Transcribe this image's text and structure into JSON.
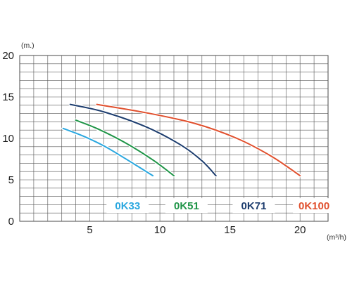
{
  "chart_data": {
    "type": "line",
    "ylabel": "(m.)",
    "xlabel": "(m³/h)",
    "xlim": [
      0,
      22
    ],
    "ylim": [
      0,
      20
    ],
    "x_ticks": [
      5,
      10,
      15,
      20
    ],
    "y_ticks": [
      0,
      5,
      10,
      15,
      20
    ],
    "x_minor_step": 1,
    "y_minor_step": 1,
    "grid": true,
    "legend": "inline labels along the bottom of the plot",
    "series": [
      {
        "name": "0K33",
        "color": "#2aa7df",
        "points": [
          [
            3.1,
            11.2
          ],
          [
            4.5,
            10.3
          ],
          [
            6,
            9.1
          ],
          [
            7.5,
            7.6
          ],
          [
            9.5,
            5.5
          ]
        ]
      },
      {
        "name": "0K51",
        "color": "#1f9447",
        "points": [
          [
            4,
            12.2
          ],
          [
            5.5,
            11.2
          ],
          [
            7.5,
            9.5
          ],
          [
            9.5,
            7.4
          ],
          [
            11,
            5.5
          ]
        ]
      },
      {
        "name": "0K71",
        "color": "#1d3d6e",
        "points": [
          [
            3.6,
            14.1
          ],
          [
            6,
            13.2
          ],
          [
            9,
            11.4
          ],
          [
            11.5,
            9.2
          ],
          [
            13,
            7.3
          ],
          [
            14,
            5.5
          ]
        ]
      },
      {
        "name": "0K100",
        "color": "#e0502e",
        "points": [
          [
            5.5,
            14.1
          ],
          [
            9,
            13.1
          ],
          [
            12.5,
            11.8
          ],
          [
            15.5,
            10
          ],
          [
            18,
            7.8
          ],
          [
            20,
            5.5
          ]
        ]
      }
    ]
  }
}
